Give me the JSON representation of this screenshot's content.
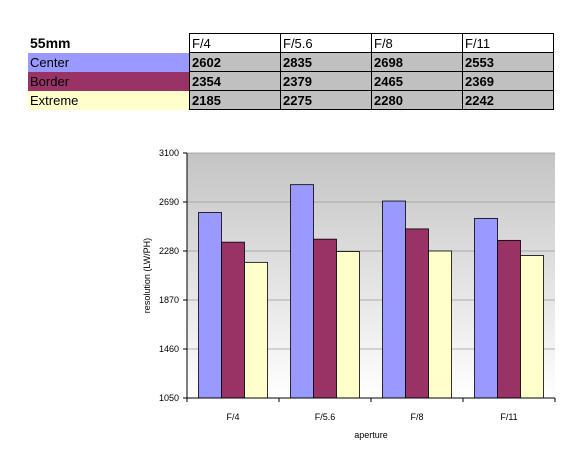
{
  "table": {
    "title": "55mm",
    "columns": [
      "F/4",
      "F/5.6",
      "F/8",
      "F/11"
    ],
    "rows": [
      {
        "label": "Center",
        "color": "#9999ff",
        "values": [
          "2602",
          "2835",
          "2698",
          "2553"
        ]
      },
      {
        "label": "Border",
        "color": "#993366",
        "values": [
          "2354",
          "2379",
          "2465",
          "2369"
        ]
      },
      {
        "label": "Extreme",
        "color": "#ffffcc",
        "values": [
          "2185",
          "2275",
          "2280",
          "2242"
        ]
      }
    ]
  },
  "chart_data": {
    "type": "bar",
    "categories": [
      "F/4",
      "F/5.6",
      "F/8",
      "F/11"
    ],
    "series": [
      {
        "name": "Center",
        "color": "#9999ff",
        "values": [
          2602,
          2835,
          2698,
          2553
        ]
      },
      {
        "name": "Border",
        "color": "#993366",
        "values": [
          2354,
          2379,
          2465,
          2369
        ]
      },
      {
        "name": "Extreme",
        "color": "#ffffcc",
        "values": [
          2185,
          2275,
          2280,
          2242
        ]
      }
    ],
    "xlabel": "aperture",
    "ylabel": "resolution (LW/PH)",
    "ylim": [
      1050,
      3100
    ],
    "yticks": [
      "3100",
      "2690",
      "2280",
      "1870",
      "1460",
      "1050"
    ],
    "grid": true
  }
}
